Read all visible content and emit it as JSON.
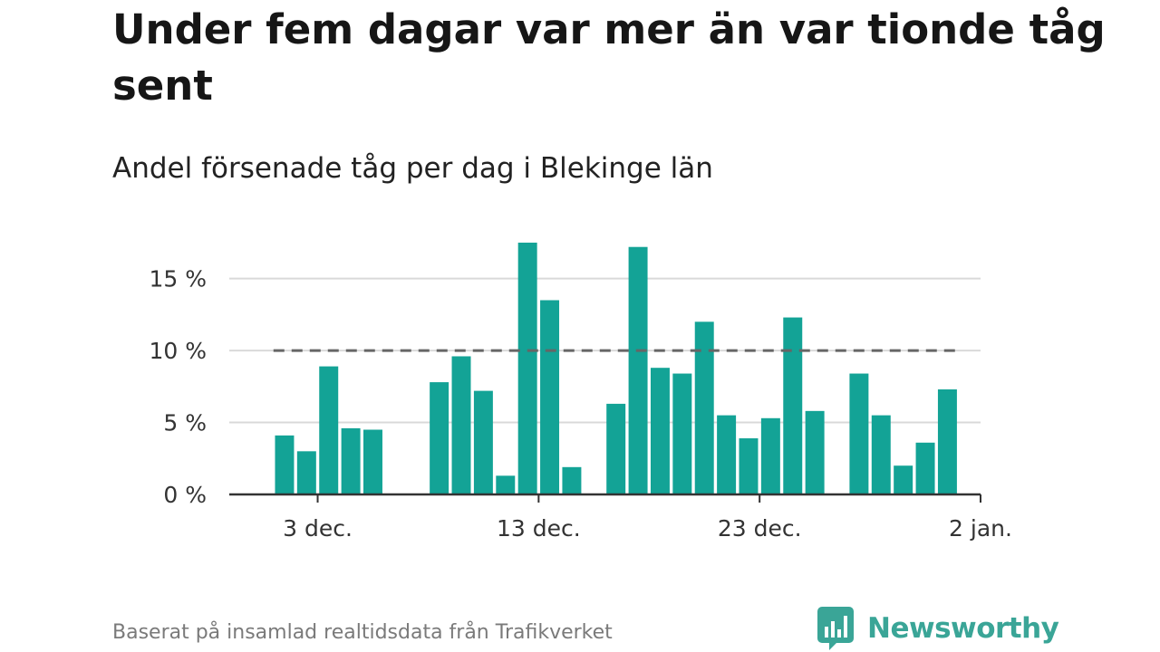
{
  "title": "Under fem dagar var mer än var tionde tåg sent",
  "subtitle": "Andel försenade tåg per dag i Blekinge län",
  "source": "Baserat på insamlad realtidsdata från Trafikverket",
  "brand": {
    "name": "Newsworthy",
    "color": "#3aa597"
  },
  "colors": {
    "bar": "#13a396",
    "reference_line": "#666666",
    "grid": "#d9d9d9",
    "axis": "#333333"
  },
  "chart_data": {
    "type": "bar",
    "title": "Under fem dagar var mer än var tionde tåg sent",
    "subtitle": "Andel försenade tåg per dag i Blekinge län",
    "x_axis": {
      "type": "date",
      "range": [
        "2019-11-29",
        "2020-01-02"
      ],
      "ticks": [
        "3 dec.",
        "13 dec.",
        "23 dec.",
        "2 jan."
      ]
    },
    "y_axis": {
      "range": [
        0,
        18
      ],
      "unit": "%",
      "ticks": [
        "0 %",
        "5 %",
        "10 %",
        "15 %"
      ],
      "tick_values": [
        0,
        5,
        10,
        15
      ]
    },
    "reference_line": {
      "value": 10,
      "style": "dashed",
      "x_range": [
        "2019-12-01",
        "2019-12-31"
      ]
    },
    "grid": true,
    "series": [
      {
        "points": [
          {
            "date": "2019-12-01",
            "value": 4.1
          },
          {
            "date": "2019-12-02",
            "value": 3.0
          },
          {
            "date": "2019-12-03",
            "value": 8.9
          },
          {
            "date": "2019-12-04",
            "value": 4.6
          },
          {
            "date": "2019-12-05",
            "value": 4.5
          },
          {
            "date": "2019-12-08",
            "value": 7.8
          },
          {
            "date": "2019-12-09",
            "value": 9.6
          },
          {
            "date": "2019-12-10",
            "value": 7.2
          },
          {
            "date": "2019-12-11",
            "value": 1.3
          },
          {
            "date": "2019-12-12",
            "value": 17.5
          },
          {
            "date": "2019-12-13",
            "value": 13.5
          },
          {
            "date": "2019-12-14",
            "value": 1.9
          },
          {
            "date": "2019-12-16",
            "value": 6.3
          },
          {
            "date": "2019-12-17",
            "value": 17.2
          },
          {
            "date": "2019-12-18",
            "value": 8.8
          },
          {
            "date": "2019-12-19",
            "value": 8.4
          },
          {
            "date": "2019-12-20",
            "value": 12.0
          },
          {
            "date": "2019-12-21",
            "value": 5.5
          },
          {
            "date": "2019-12-22",
            "value": 3.9
          },
          {
            "date": "2019-12-23",
            "value": 5.3
          },
          {
            "date": "2019-12-24",
            "value": 12.3
          },
          {
            "date": "2019-12-25",
            "value": 5.8
          },
          {
            "date": "2019-12-27",
            "value": 8.4
          },
          {
            "date": "2019-12-28",
            "value": 5.5
          },
          {
            "date": "2019-12-29",
            "value": 2.0
          },
          {
            "date": "2019-12-30",
            "value": 3.6
          },
          {
            "date": "2019-12-31",
            "value": 7.3
          }
        ]
      }
    ]
  }
}
